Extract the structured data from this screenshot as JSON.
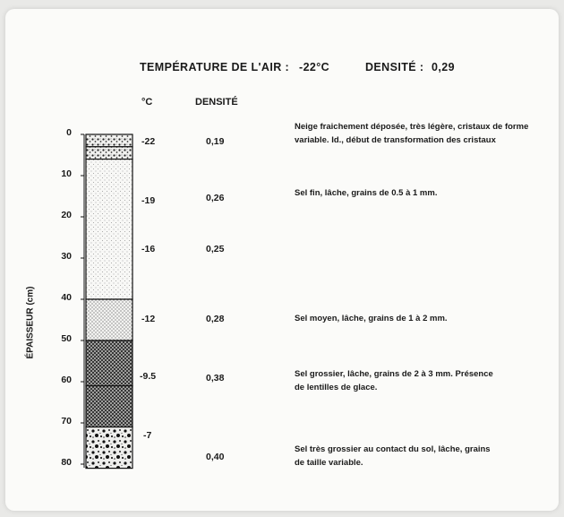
{
  "title": {
    "air_temp_label": "TEMPÉRATURE DE L'AIR :",
    "air_temp_value": "-22°C",
    "density_label": "DENSITÉ :",
    "density_value": "0,29"
  },
  "columns": {
    "temp_header": "°C",
    "density_header": "DENSITÉ"
  },
  "axis": {
    "label": "ÉPAISSEUR (cm)",
    "ticks": [
      "0",
      "10",
      "20",
      "30",
      "40",
      "50",
      "60",
      "70",
      "80"
    ]
  },
  "layers": [
    {
      "from_cm": 0,
      "to_cm": 3,
      "pattern": "fresh-snow",
      "temp": "-22",
      "density": "0,19",
      "desc": "Neige fraichement déposée, très légère, cristaux de forme variable. Id., début de transformation des cristaux"
    },
    {
      "from_cm": 3,
      "to_cm": 6,
      "pattern": "fresh-snow",
      "temp": "",
      "density": "",
      "desc": ""
    },
    {
      "from_cm": 6,
      "to_cm": 40,
      "pattern": "fine-grain",
      "temp": "",
      "density": "",
      "desc": ""
    },
    {
      "from_cm": 40,
      "to_cm": 50,
      "pattern": "medium-grain",
      "temp": "-12",
      "density": "0,28",
      "desc": "Sel moyen, lâche, grains de 1 à 2 mm."
    },
    {
      "from_cm": 50,
      "to_cm": 61,
      "pattern": "coarse-grain",
      "temp": "-9.5",
      "density": "0,38",
      "desc": "Sel grossier, lâche, grains de 2 à 3 mm. Présence de lentilles de glace."
    },
    {
      "from_cm": 61,
      "to_cm": 71,
      "pattern": "coarse-grain",
      "temp": "",
      "density": "",
      "desc": ""
    },
    {
      "from_cm": 71,
      "to_cm": 81,
      "pattern": "very-coarse",
      "temp": "-7",
      "density": "0,40",
      "desc": "Sel très grossier au contact du sol, lâche, grains de taille variable."
    }
  ],
  "fine_grain_rows": [
    {
      "temp": "-19",
      "density": "0,26",
      "desc": "Sel fin, lâche, grains de 0.5 à 1 mm."
    },
    {
      "temp": "-16",
      "density": "0,25",
      "desc": ""
    }
  ]
}
